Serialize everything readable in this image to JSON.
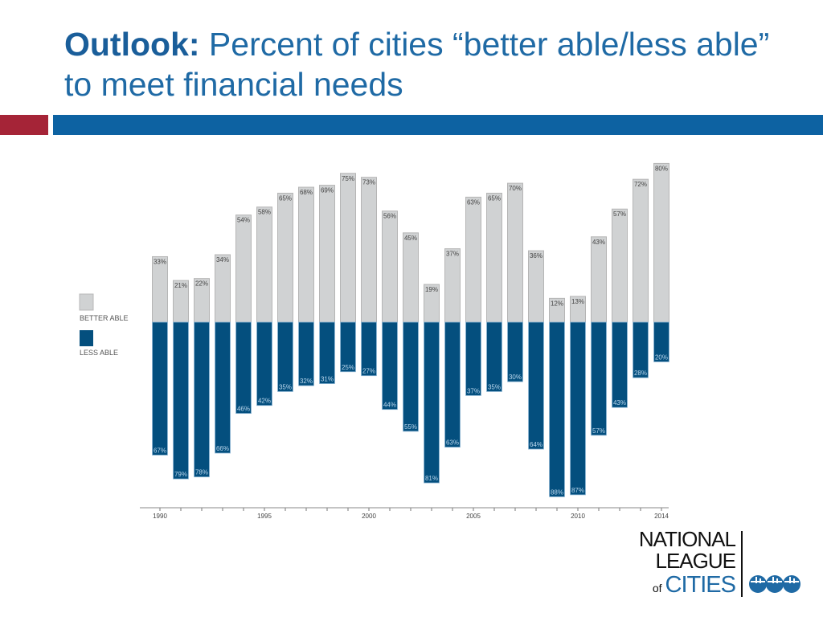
{
  "title": {
    "bold": "Outlook:",
    "rest": " Percent of cities “better able/less able” to meet financial needs"
  },
  "colors": {
    "better_able": "#d0d2d3",
    "less_able": "#044f7e",
    "accent_red": "#a52437",
    "accent_blue": "#0d62a2"
  },
  "chart_data": {
    "type": "bar",
    "layout": "diverging stacked",
    "years": [
      1990,
      1991,
      1992,
      1993,
      1994,
      1995,
      1996,
      1997,
      1998,
      1999,
      2000,
      2001,
      2002,
      2003,
      2004,
      2005,
      2006,
      2007,
      2008,
      2009,
      2010,
      2011,
      2012,
      2013,
      2014
    ],
    "x_tick_labels": [
      "1990",
      "1995",
      "2000",
      "2005",
      "2010",
      "2014"
    ],
    "series": [
      {
        "name": "BETTER ABLE",
        "color": "#d0d2d3",
        "values": [
          33,
          21,
          22,
          34,
          54,
          58,
          65,
          68,
          69,
          75,
          73,
          56,
          45,
          19,
          37,
          63,
          65,
          70,
          36,
          12,
          13,
          43,
          57,
          72,
          80
        ]
      },
      {
        "name": "LESS ABLE",
        "color": "#044f7e",
        "values": [
          67,
          79,
          78,
          66,
          46,
          42,
          35,
          32,
          31,
          25,
          27,
          44,
          55,
          81,
          63,
          37,
          35,
          30,
          64,
          88,
          87,
          57,
          43,
          28,
          20
        ]
      }
    ],
    "legend_placement": "left",
    "grid": false,
    "unit": "%"
  },
  "logo": {
    "line1": "NATIONAL",
    "line2": "LEAGUE",
    "of": "of",
    "line3": "CITIES"
  }
}
